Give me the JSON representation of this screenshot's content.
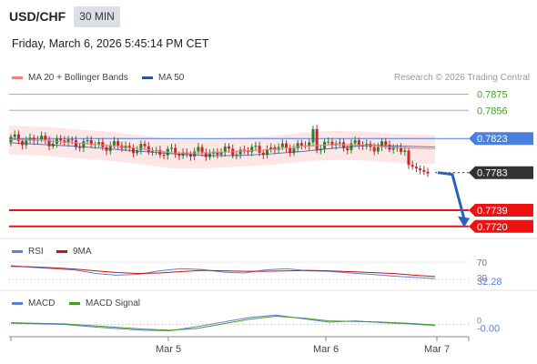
{
  "header": {
    "symbol": "USD/CHF",
    "timeframe": "30 MIN",
    "datetime": "Friday, March 6, 2026 5:45:14 PM CET"
  },
  "legend": {
    "ma20_label": "MA 20 + Bollinger Bands",
    "ma50_label": "MA 50",
    "credit": "Research © 2026 Trading Central",
    "rsi_label": "RSI",
    "rsi_ma_label": "9MA",
    "macd_label": "MACD",
    "macd_signal_label": "MACD Signal"
  },
  "colors": {
    "ma20": "#f08080",
    "ma50": "#2f5597",
    "band_fill": "#fde3e3",
    "support": "#ee1111",
    "resistance": "#8dc86a",
    "pivot": "#4a7fe0",
    "last": "#333333",
    "bull": "#2e7d32",
    "bear": "#c62828",
    "rsi": "#5b7fd6",
    "rsi_ma": "#cc1111",
    "macd": "#5b7fd6",
    "macd_signal": "#4a9a2a"
  },
  "chart_data": [
    {
      "type": "candlestick",
      "panel": "price",
      "x_tick_labels": [
        "Mar 5",
        "Mar 6",
        "Mar 7"
      ],
      "ylim": [
        0.7708,
        0.7884
      ],
      "series": [
        {
          "name": "MA 20 + Bollinger Bands",
          "values": [
            0.7822,
            0.7821,
            0.7818,
            0.7815,
            0.7811,
            0.7806,
            0.7806,
            0.7808,
            0.781,
            0.7814,
            0.7816,
            0.7815,
            0.7812,
            0.7811
          ]
        },
        {
          "name": "MA 50",
          "values": [
            0.7818,
            0.7816,
            0.7814,
            0.7811,
            0.7808,
            0.7805,
            0.7803,
            0.7803,
            0.7805,
            0.7808,
            0.7812,
            0.7815,
            0.7814,
            0.7813
          ]
        }
      ],
      "levels": [
        {
          "value": 0.7875,
          "label": "0.7875",
          "kind": "resistance"
        },
        {
          "value": 0.7856,
          "label": "0.7856",
          "kind": "resistance"
        },
        {
          "value": 0.7823,
          "label": "0.7823",
          "kind": "pivot"
        },
        {
          "value": 0.7783,
          "label": "0.7783",
          "kind": "last"
        },
        {
          "value": 0.7739,
          "label": "0.7739",
          "kind": "support"
        },
        {
          "value": 0.772,
          "label": "0.7720",
          "kind": "support"
        }
      ],
      "forecast_arrow": {
        "from": 0.7783,
        "to": 0.772
      }
    },
    {
      "type": "line",
      "panel": "rsi",
      "tick_labels": [
        "70",
        "30",
        "32.28"
      ],
      "last_value": 32.28,
      "ylim": [
        0,
        100
      ],
      "series": [
        {
          "name": "RSI",
          "values": [
            62,
            58,
            55,
            52,
            44,
            40,
            42,
            50,
            55,
            53,
            47,
            45,
            52,
            55,
            50,
            49,
            45,
            42,
            38,
            35,
            32.28
          ]
        },
        {
          "name": "9MA",
          "values": [
            60,
            59,
            57,
            54,
            50,
            46,
            44,
            45,
            48,
            51,
            50,
            49,
            49,
            50,
            51,
            50,
            48,
            46,
            44,
            40,
            37
          ]
        }
      ]
    },
    {
      "type": "line",
      "panel": "macd",
      "tick_labels": [
        "0",
        "-0.00"
      ],
      "last_value": -0.0,
      "series": [
        {
          "name": "MACD",
          "values": [
            0.0002,
            0.0001,
            0.0,
            -0.0004,
            -0.0007,
            -0.001,
            -0.0011,
            -0.0004,
            0.0004,
            0.0012,
            0.0016,
            0.001,
            0.0004,
            0.0006,
            0.0003,
            0.0001,
            -0.0002
          ]
        },
        {
          "name": "MACD Signal",
          "values": [
            0.0003,
            0.0002,
            0.0001,
            -0.0002,
            -0.0005,
            -0.0008,
            -0.001,
            -0.0007,
            0.0001,
            0.0009,
            0.0014,
            0.0011,
            0.0006,
            0.0005,
            0.0004,
            0.0002,
            -0.0001
          ]
        }
      ]
    }
  ]
}
